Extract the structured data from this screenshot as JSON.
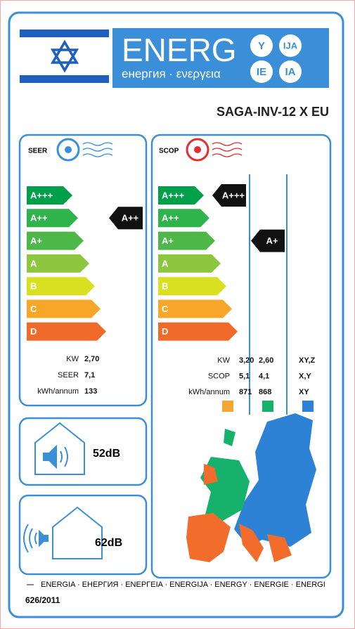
{
  "header": {
    "title": "ENERG",
    "subtitle": "енергия · ενεργεια",
    "suffixes": [
      "Y",
      "IJA",
      "IE",
      "IA"
    ]
  },
  "model": "SAGA-INV-12 X EU",
  "classes": [
    "A+++",
    "A++",
    "A+",
    "A",
    "B",
    "C",
    "D"
  ],
  "seer": {
    "label": "SEER",
    "rating": "A++",
    "rows": [
      {
        "label": "KW",
        "value": "2,70"
      },
      {
        "label": "SEER",
        "value": "7,1"
      },
      {
        "label": "kWh/annum",
        "value": "133"
      }
    ]
  },
  "scop": {
    "label": "SCOP",
    "ratings": [
      "A+++",
      "A+"
    ],
    "rows": [
      {
        "label": "KW",
        "values": [
          "3,20",
          "2,60",
          "XY,Z"
        ]
      },
      {
        "label": "SCOP",
        "values": [
          "5,1",
          "4,1",
          "X,Y"
        ]
      },
      {
        "label": "kWh/annum",
        "values": [
          "871",
          "868",
          "XY"
        ]
      }
    ]
  },
  "noise": {
    "indoor": "52dB",
    "outdoor": "62dB"
  },
  "footer": {
    "languages": "ENERGIA · ЕНЕРГИЯ · ΕΝΕΡΓΕΙΑ · ENERGIJA · ENERGY · ENERGIE · ENERGI",
    "regulation": "626/2011"
  }
}
